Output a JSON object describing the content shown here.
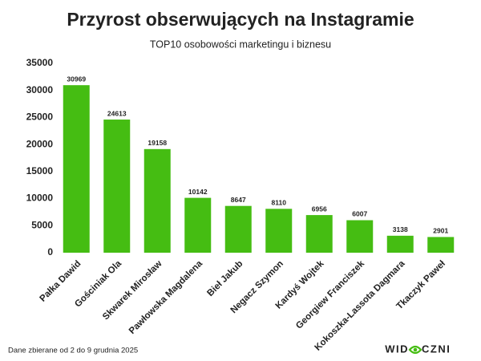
{
  "chart_data": {
    "type": "bar",
    "title": "Przyrost obserwujących na Instagramie",
    "subtitle": "TOP10 osobowości marketingu i biznesu",
    "categories": [
      "Pałka Dawid",
      "Gościniak Ola",
      "Skwarek Mirosław",
      "Pawłowska Magdalena",
      "Bieł Jakub",
      "Negacz Szymon",
      "Kardyś Wojtek",
      "Georgiew Franciszek",
      "Kokoszka-Lassota Dagmara",
      "Tkaczyk Paweł"
    ],
    "values": [
      30969,
      24613,
      19158,
      10142,
      8647,
      8110,
      6956,
      6007,
      3138,
      2901
    ],
    "color": "#45bd12",
    "ylim": [
      0,
      35000
    ],
    "yticks": [
      0,
      5000,
      10000,
      15000,
      20000,
      25000,
      30000,
      35000
    ],
    "grid": false
  },
  "footer": "Dane zbierane od 2 do 9 grudnia 2025",
  "logo": {
    "left": "WID",
    "right": "CZNI"
  }
}
